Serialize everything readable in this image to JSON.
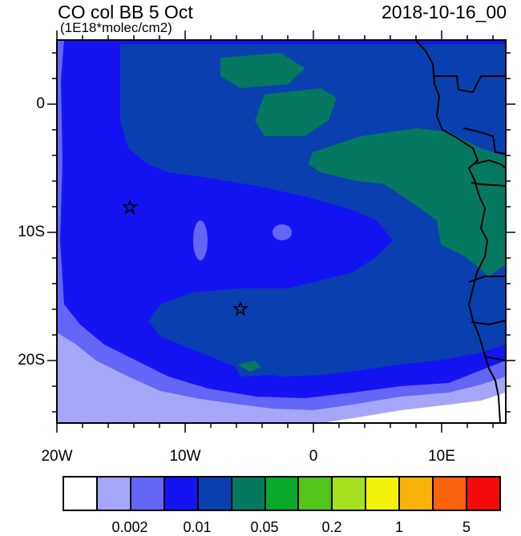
{
  "title": "CO col BB 5 Oct",
  "subtitle": "(1E18*molec/cm2)",
  "timestamp": "2018-10-16_00",
  "axes": {
    "x_ticks": [
      "20W",
      "10W",
      "0",
      "10E"
    ],
    "y_ticks": [
      "0",
      "10S",
      "20S"
    ]
  },
  "colorbar": {
    "colors": [
      "#ffffff",
      "#a6a6f8",
      "#6565f6",
      "#1414f2",
      "#0a3fb0",
      "#057860",
      "#0aa82a",
      "#52c41a",
      "#a8e020",
      "#f2f20a",
      "#f9b30a",
      "#f8620a",
      "#f40a0a"
    ],
    "labels": [
      "0.002",
      "0.01",
      "0.05",
      "0.2",
      "1",
      "5"
    ]
  },
  "markers": [
    "star",
    "star"
  ],
  "colors": {
    "white_level": "#ffffff",
    "light_blue": "#a6a6f8",
    "medium_blue": "#6565f6",
    "bright_blue": "#1414f2",
    "dark_blue": "#0a3fb0",
    "teal": "#057860",
    "land_outline": "#000000"
  }
}
